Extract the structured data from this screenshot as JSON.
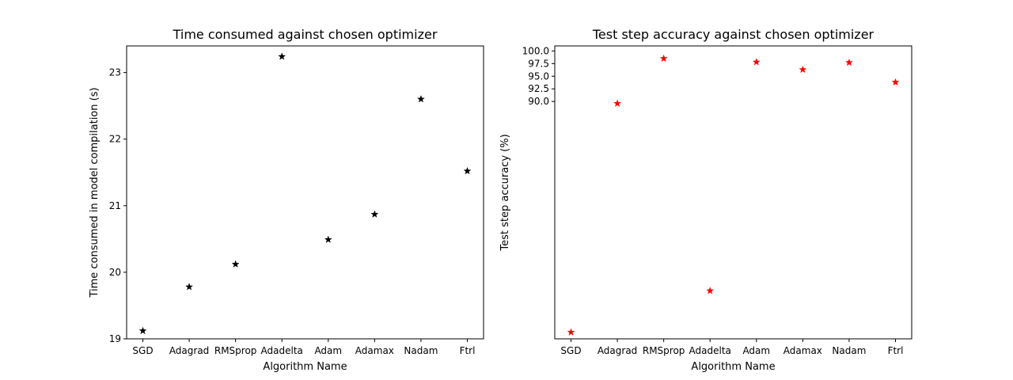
{
  "chart_data": [
    {
      "type": "scatter",
      "title": "Time consumed against chosen optimizer",
      "xlabel": "Algorithm Name",
      "ylabel": "Time consumed in model compilation (s)",
      "categories": [
        "SGD",
        "Adagrad",
        "RMSprop",
        "Adadelta",
        "Adam",
        "Adamax",
        "Nadam",
        "Ftrl"
      ],
      "values": [
        19.12,
        19.78,
        20.12,
        23.24,
        20.49,
        20.87,
        22.6,
        21.52
      ],
      "yticks": [
        "19",
        "20",
        "21",
        "22",
        "23"
      ],
      "ylim": [
        19.0,
        23.4
      ],
      "marker": "star",
      "color": "#000000",
      "grid": false
    },
    {
      "type": "scatter",
      "title": "Test step accuracy against chosen optimizer",
      "xlabel": "Algorithm Name",
      "ylabel": "Test step accuracy (%)",
      "categories": [
        "SGD",
        "Adagrad",
        "RMSprop",
        "Adadelta",
        "Adam",
        "Adamax",
        "Nadam",
        "Ftrl"
      ],
      "values": [
        44.3,
        89.6,
        98.5,
        52.5,
        97.8,
        96.3,
        97.7,
        93.8
      ],
      "yticks": [
        "90.0",
        "92.5",
        "95.0",
        "97.5",
        "100.0"
      ],
      "ytick_values": [
        90.0,
        92.5,
        95.0,
        97.5,
        100.0
      ],
      "ylim": [
        43.0,
        101.0
      ],
      "marker": "star",
      "color": "#ff0000",
      "grid": false
    }
  ]
}
